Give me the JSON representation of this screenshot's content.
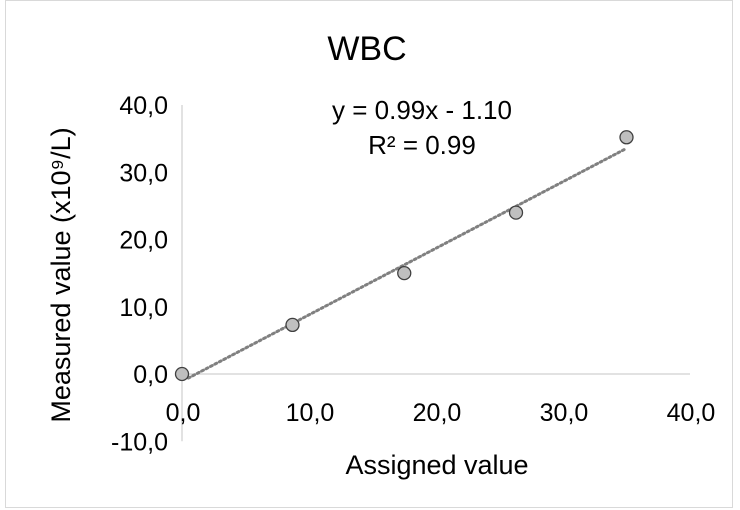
{
  "chart_data": {
    "type": "scatter",
    "title": "WBC",
    "xlabel": "Assigned value",
    "ylabel": "Measured value (x10⁹/L)",
    "xlim": [
      -0.0,
      40.0
    ],
    "ylim": [
      -10.0,
      40.0
    ],
    "x_ticks": [
      "0,0",
      "10,0",
      "20,0",
      "30,0",
      "40,0"
    ],
    "y_ticks": [
      "-10,0",
      "0,0",
      "10,0",
      "20,0",
      "30,0",
      "40,0"
    ],
    "x_tick_values": [
      0,
      10,
      20,
      30,
      40
    ],
    "y_tick_values": [
      -10,
      0,
      10,
      20,
      30,
      40
    ],
    "points": {
      "x": [
        0.0,
        8.7,
        17.5,
        26.3,
        35.0
      ],
      "y": [
        0.0,
        7.3,
        15.0,
        24.0,
        35.2
      ]
    },
    "trendline": {
      "style": "dotted",
      "slope": 0.99,
      "intercept": -1.1,
      "x_range": [
        0.5,
        35.0
      ],
      "equation_label": "y = 0.99x - 1.10",
      "r2_label": "R² = 0.99"
    },
    "colors": {
      "marker_fill": "#bfbfbf",
      "marker_stroke": "#404040",
      "trendline": "#808080",
      "axis": "#d9d9d9"
    },
    "grid": false,
    "legend": "none"
  }
}
